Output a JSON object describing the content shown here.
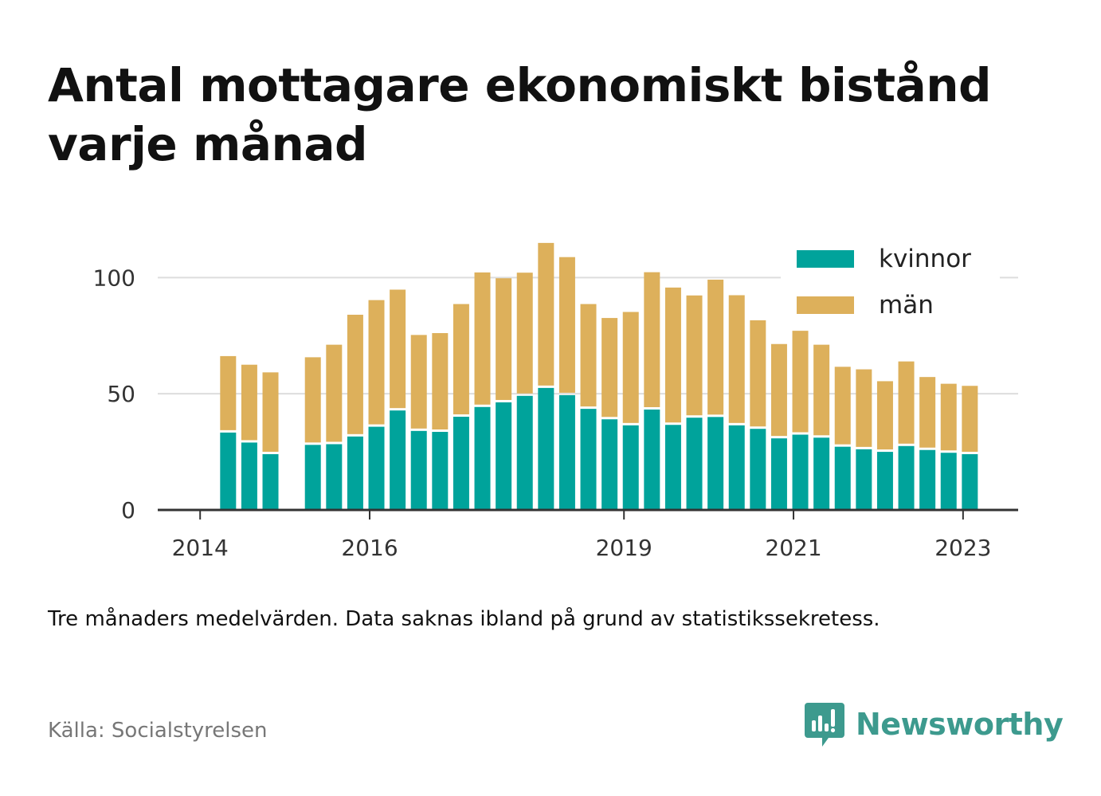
{
  "header": {
    "title": "Antal mottagare ekonomiskt bistånd varje månad"
  },
  "footer": {
    "note": "Tre månaders medelvärden. Data saknas ibland på grund av statistikssekretess.",
    "source": "Källa: Socialstyrelsen",
    "brand": "Newsworthy"
  },
  "colors": {
    "kvinnor": "#00a39b",
    "man": "#ddb05b",
    "grid": "#dddddd",
    "axis": "#333333",
    "brand": "#3d9a8e"
  },
  "chart_data": {
    "type": "bar",
    "stacked": true,
    "x_ticks": [
      {
        "label": "2014",
        "x": 2014.0
      },
      {
        "label": "2016",
        "x": 2016.0
      },
      {
        "label": "2019",
        "x": 2019.0
      },
      {
        "label": "2021",
        "x": 2021.0
      },
      {
        "label": "2023",
        "x": 2023.0
      }
    ],
    "x_range": [
      2013.5,
      2023.65
    ],
    "ylim": [
      0,
      120
    ],
    "y_ticks": [
      0,
      50,
      100
    ],
    "grid": true,
    "legend_position": "top-right",
    "x": [
      2014.33,
      2014.58,
      2014.83,
      2015.33,
      2015.58,
      2015.83,
      2016.08,
      2016.33,
      2016.58,
      2016.83,
      2017.08,
      2017.33,
      2017.58,
      2017.83,
      2018.08,
      2018.33,
      2018.58,
      2018.83,
      2019.08,
      2019.33,
      2019.58,
      2019.83,
      2020.08,
      2020.33,
      2020.58,
      2020.83,
      2021.08,
      2021.33,
      2021.58,
      2021.83,
      2022.08,
      2022.33,
      2022.58,
      2022.83,
      2023.08
    ],
    "series": [
      {
        "name": "kvinnor",
        "values": [
          33.3,
          29.0,
          24.0,
          28.0,
          28.3,
          31.6,
          35.8,
          42.8,
          34.0,
          33.6,
          40.1,
          44.3,
          46.3,
          49.1,
          52.5,
          49.4,
          43.5,
          39.0,
          36.4,
          43.2,
          36.6,
          39.7,
          40.0,
          36.4,
          34.9,
          30.8,
          32.4,
          31.1,
          27.2,
          26.1,
          25.0,
          27.5,
          25.8,
          24.6,
          24.0
        ]
      },
      {
        "name": "män",
        "values": [
          32.9,
          33.5,
          35.2,
          37.7,
          42.8,
          52.4,
          54.5,
          52.0,
          41.3,
          42.5,
          48.5,
          57.9,
          53.4,
          53.0,
          62.4,
          59.4,
          45.1,
          43.6,
          48.8,
          59.1,
          59.1,
          52.6,
          59.1,
          56.0,
          46.7,
          40.6,
          44.7,
          40.0,
          34.4,
          34.4,
          30.4,
          36.4,
          31.4,
          29.7,
          29.4
        ]
      }
    ],
    "legend": [
      "kvinnor",
      "män"
    ]
  }
}
